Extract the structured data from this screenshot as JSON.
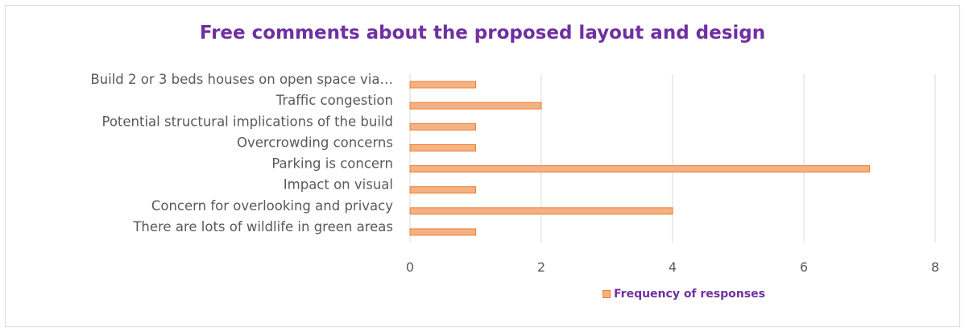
{
  "chart_data": {
    "type": "bar",
    "orientation": "horizontal",
    "title": "Free comments about the proposed layout and design",
    "categories": [
      "Build 2 or 3 beds houses on open space via…",
      "Traffic congestion",
      "Potential structural implications of the build",
      "Overcrowding concerns",
      "Parking is concern",
      "Impact on visual",
      "Concern for overlooking and privacy ",
      "There are lots of wildlife in green areas"
    ],
    "series": [
      {
        "name": "Frequency of responses",
        "values": [
          1,
          2,
          1,
          1,
          7,
          1,
          4,
          1
        ]
      }
    ],
    "xlim": [
      0,
      8
    ],
    "xticks": [
      "0",
      "2",
      "4",
      "6",
      "8"
    ],
    "grid": true,
    "legend_position": "bottom",
    "colors": {
      "bar_fill": "#f4b183",
      "bar_stroke": "#ed7d31",
      "title": "#7030a0",
      "text": "#595959",
      "grid": "#d9d9d9"
    }
  }
}
